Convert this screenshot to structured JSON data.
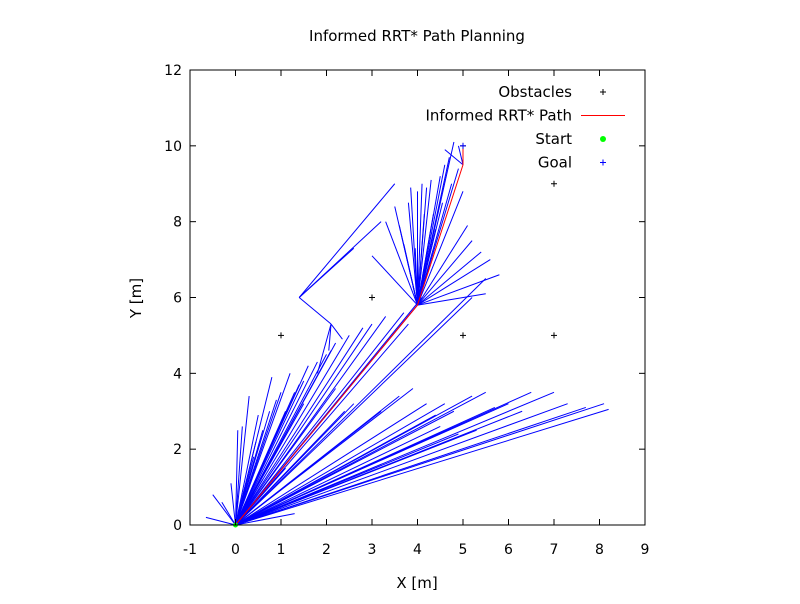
{
  "chart_data": {
    "type": "scatter",
    "title": "Informed RRT* Path Planning",
    "xlabel": "X [m]",
    "ylabel": "Y [m]",
    "xlim": [
      -1,
      9
    ],
    "ylim": [
      0,
      12
    ],
    "xticks": [
      -1,
      0,
      1,
      2,
      3,
      4,
      5,
      6,
      7,
      8,
      9
    ],
    "yticks": [
      0,
      2,
      4,
      6,
      8,
      10,
      12
    ],
    "grid": false,
    "legend_position": "top-right",
    "legend": [
      {
        "label": "Obstacles",
        "marker": "plus",
        "color": "#000000"
      },
      {
        "label": "Informed RRT* Path",
        "marker": "line",
        "color": "#ff0000"
      },
      {
        "label": "Start",
        "marker": "dot",
        "color": "#00ff00"
      },
      {
        "label": "Goal",
        "marker": "plus",
        "color": "#0000ff"
      }
    ],
    "obstacles": [
      [
        1,
        5
      ],
      [
        3,
        6
      ],
      [
        5,
        5
      ],
      [
        7,
        5
      ],
      [
        7,
        9
      ],
      [
        5,
        10
      ]
    ],
    "start": [
      0,
      0
    ],
    "goal": [
      5,
      10
    ],
    "path": [
      [
        0,
        0
      ],
      [
        4,
        5.8
      ],
      [
        5,
        9.5
      ],
      [
        5,
        10
      ]
    ],
    "tree_edges": [
      [
        [
          0,
          0
        ],
        [
          -0.65,
          0.2
        ]
      ],
      [
        [
          0,
          0
        ],
        [
          -0.5,
          0.8
        ]
      ],
      [
        [
          0,
          0
        ],
        [
          -0.3,
          0.6
        ]
      ],
      [
        [
          0,
          0
        ],
        [
          -0.1,
          1.1
        ]
      ],
      [
        [
          0,
          0
        ],
        [
          0.05,
          2.5
        ]
      ],
      [
        [
          0,
          0
        ],
        [
          0.15,
          2.6
        ]
      ],
      [
        [
          0,
          0
        ],
        [
          0.3,
          3.4
        ]
      ],
      [
        [
          0,
          0
        ],
        [
          0.45,
          2.2
        ]
      ],
      [
        [
          0,
          0
        ],
        [
          0.5,
          2.9
        ]
      ],
      [
        [
          0,
          0
        ],
        [
          0.6,
          2.5
        ]
      ],
      [
        [
          0,
          0
        ],
        [
          0.75,
          3.0
        ]
      ],
      [
        [
          0,
          0
        ],
        [
          0.8,
          3.9
        ]
      ],
      [
        [
          0,
          0
        ],
        [
          0.9,
          3.3
        ]
      ],
      [
        [
          0,
          0
        ],
        [
          1.0,
          3.5
        ]
      ],
      [
        [
          0,
          0
        ],
        [
          1.1,
          3.0
        ]
      ],
      [
        [
          0,
          0
        ],
        [
          1.2,
          4.0
        ]
      ],
      [
        [
          0,
          0
        ],
        [
          1.3,
          3.5
        ]
      ],
      [
        [
          0,
          0
        ],
        [
          1.4,
          3.7
        ]
      ],
      [
        [
          0,
          0
        ],
        [
          1.5,
          3.2
        ]
      ],
      [
        [
          0,
          0
        ],
        [
          1.6,
          4.2
        ]
      ],
      [
        [
          0,
          0
        ],
        [
          1.8,
          4.3
        ]
      ],
      [
        [
          0,
          0
        ],
        [
          2.0,
          4.5
        ]
      ],
      [
        [
          0,
          0
        ],
        [
          2.2,
          4.8
        ]
      ],
      [
        [
          0,
          0
        ],
        [
          2.5,
          5.0
        ]
      ],
      [
        [
          0,
          0
        ],
        [
          2.8,
          5.2
        ]
      ],
      [
        [
          0,
          0
        ],
        [
          3.0,
          5.3
        ]
      ],
      [
        [
          0,
          0
        ],
        [
          3.3,
          5.5
        ]
      ],
      [
        [
          0,
          0
        ],
        [
          3.7,
          5.6
        ]
      ],
      [
        [
          0,
          0
        ],
        [
          4.0,
          5.8
        ]
      ],
      [
        [
          0,
          0
        ],
        [
          1.5,
          3.8
        ]
      ],
      [
        [
          0,
          0
        ],
        [
          2.2,
          3.6
        ]
      ],
      [
        [
          0,
          0
        ],
        [
          2.4,
          3.0
        ]
      ],
      [
        [
          0,
          0
        ],
        [
          2.6,
          3.2
        ]
      ],
      [
        [
          0,
          0
        ],
        [
          3.2,
          3.0
        ]
      ],
      [
        [
          0,
          0
        ],
        [
          3.6,
          3.4
        ]
      ],
      [
        [
          0,
          0
        ],
        [
          3.9,
          3.6
        ]
      ],
      [
        [
          0,
          0
        ],
        [
          4.2,
          3.2
        ]
      ],
      [
        [
          0,
          0
        ],
        [
          4.6,
          3.2
        ]
      ],
      [
        [
          0,
          0
        ],
        [
          4.4,
          2.9
        ]
      ],
      [
        [
          0,
          0
        ],
        [
          4.8,
          3.0
        ]
      ],
      [
        [
          0,
          0
        ],
        [
          5.2,
          3.4
        ]
      ],
      [
        [
          0,
          0
        ],
        [
          5.5,
          3.5
        ]
      ],
      [
        [
          0,
          0
        ],
        [
          5.7,
          3.1
        ]
      ],
      [
        [
          0,
          0
        ],
        [
          6.0,
          3.2
        ]
      ],
      [
        [
          0,
          0
        ],
        [
          6.5,
          3.5
        ]
      ],
      [
        [
          0,
          0
        ],
        [
          6.3,
          3.0
        ]
      ],
      [
        [
          0,
          0
        ],
        [
          7.0,
          3.5
        ]
      ],
      [
        [
          0,
          0
        ],
        [
          7.3,
          3.2
        ]
      ],
      [
        [
          0,
          0
        ],
        [
          7.7,
          3.1
        ]
      ],
      [
        [
          0,
          0
        ],
        [
          8.1,
          3.2
        ]
      ],
      [
        [
          0,
          0
        ],
        [
          8.2,
          3.05
        ]
      ],
      [
        [
          0,
          0
        ],
        [
          5.3,
          2.5
        ]
      ],
      [
        [
          0,
          0
        ],
        [
          4.9,
          2.4
        ]
      ],
      [
        [
          0,
          0
        ],
        [
          4.5,
          2.6
        ]
      ],
      [
        [
          0,
          0
        ],
        [
          1.3,
          0.3
        ]
      ],
      [
        [
          0,
          0
        ],
        [
          0.4,
          1.8
        ]
      ],
      [
        [
          0,
          0
        ],
        [
          5.5,
          6.5
        ]
      ],
      [
        [
          0,
          0
        ],
        [
          5.2,
          6.0
        ]
      ],
      [
        [
          0,
          0
        ],
        [
          1.1,
          1.5
        ]
      ],
      [
        [
          0,
          0
        ],
        [
          0.6,
          1.2
        ]
      ],
      [
        [
          0,
          0
        ],
        [
          4.1,
          6.0
        ]
      ],
      [
        [
          0,
          0
        ],
        [
          3.8,
          5.3
        ]
      ],
      [
        [
          0,
          0
        ],
        [
          2.1,
          4.6
        ]
      ],
      [
        [
          1.4,
          6.0
        ],
        [
          3.5,
          9.0
        ]
      ],
      [
        [
          1.4,
          6.0
        ],
        [
          3.2,
          8.0
        ]
      ],
      [
        [
          1.4,
          6.0
        ],
        [
          2.6,
          7.3
        ]
      ],
      [
        [
          1.4,
          6.0
        ],
        [
          2.1,
          5.3
        ]
      ],
      [
        [
          2.1,
          5.3
        ],
        [
          1.8,
          4.0
        ]
      ],
      [
        [
          2.1,
          5.3
        ],
        [
          2.05,
          4.6
        ]
      ],
      [
        [
          2.1,
          5.3
        ],
        [
          2.35,
          4.9
        ]
      ],
      [
        [
          4.0,
          5.8
        ],
        [
          3.6,
          7.9
        ]
      ],
      [
        [
          4.0,
          5.8
        ],
        [
          3.7,
          7.4
        ]
      ],
      [
        [
          4.0,
          5.8
        ],
        [
          3.8,
          8.5
        ]
      ],
      [
        [
          4.0,
          5.8
        ],
        [
          3.85,
          8.9
        ]
      ],
      [
        [
          4.0,
          5.8
        ],
        [
          4.0,
          8.8
        ]
      ],
      [
        [
          4.0,
          5.8
        ],
        [
          4.1,
          9.0
        ]
      ],
      [
        [
          4.0,
          5.8
        ],
        [
          4.2,
          8.9
        ]
      ],
      [
        [
          4.0,
          5.8
        ],
        [
          4.3,
          9.1
        ]
      ],
      [
        [
          4.0,
          5.8
        ],
        [
          4.5,
          9.2
        ]
      ],
      [
        [
          4.0,
          5.8
        ],
        [
          4.6,
          9.5
        ]
      ],
      [
        [
          4.0,
          5.8
        ],
        [
          4.7,
          9.7
        ]
      ],
      [
        [
          4.0,
          5.8
        ],
        [
          4.8,
          10.1
        ]
      ],
      [
        [
          4.0,
          5.8
        ],
        [
          4.9,
          9.4
        ]
      ],
      [
        [
          4.0,
          5.8
        ],
        [
          5.0,
          8.8
        ]
      ],
      [
        [
          4.0,
          5.8
        ],
        [
          5.1,
          7.9
        ]
      ],
      [
        [
          4.0,
          5.8
        ],
        [
          5.2,
          7.5
        ]
      ],
      [
        [
          4.0,
          5.8
        ],
        [
          5.4,
          7.2
        ]
      ],
      [
        [
          4.0,
          5.8
        ],
        [
          5.6,
          7.0
        ]
      ],
      [
        [
          4.0,
          5.8
        ],
        [
          3.3,
          8.0
        ]
      ],
      [
        [
          4.0,
          5.8
        ],
        [
          3.0,
          7.1
        ]
      ],
      [
        [
          4.0,
          5.8
        ],
        [
          3.9,
          6.3
        ]
      ],
      [
        [
          4.0,
          5.8
        ],
        [
          3.5,
          8.4
        ]
      ],
      [
        [
          4.0,
          5.8
        ],
        [
          4.35,
          8.2
        ]
      ],
      [
        [
          4.0,
          5.8
        ],
        [
          4.55,
          8.5
        ]
      ],
      [
        [
          4.0,
          5.8
        ],
        [
          4.75,
          9.0
        ]
      ],
      [
        [
          4.0,
          5.8
        ],
        [
          4.4,
          7.8
        ]
      ],
      [
        [
          4.0,
          5.8
        ],
        [
          4.15,
          8.2
        ]
      ],
      [
        [
          4.0,
          5.8
        ],
        [
          3.95,
          7.3
        ]
      ],
      [
        [
          4.0,
          5.8
        ],
        [
          5.8,
          6.6
        ]
      ],
      [
        [
          4.0,
          5.8
        ],
        [
          5.5,
          6.1
        ]
      ],
      [
        [
          5.0,
          9.5
        ],
        [
          4.6,
          9.9
        ]
      ],
      [
        [
          5.0,
          9.5
        ],
        [
          4.9,
          10.0
        ]
      ]
    ]
  }
}
